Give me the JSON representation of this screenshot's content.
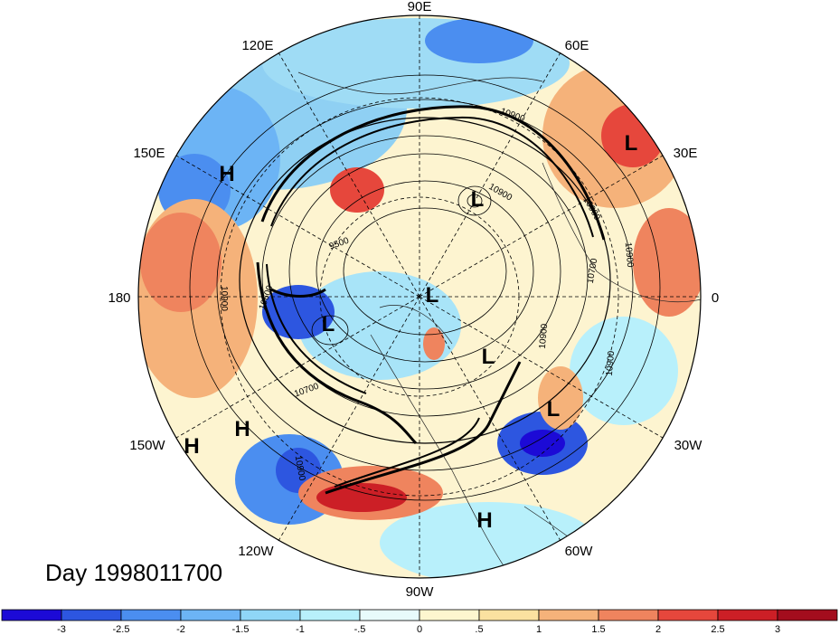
{
  "map": {
    "projection": "north-polar-stereographic",
    "longitude_labels": [
      "90E",
      "60E",
      "30E",
      "0",
      "30W",
      "60W",
      "90W",
      "120W",
      "150W",
      "180",
      "150E",
      "120E"
    ],
    "contour_labels": [
      "10900",
      "10900",
      "9500",
      "10600",
      "10900",
      "10700",
      "10900",
      "10900",
      "10700",
      "10900",
      "10900",
      "10900"
    ],
    "pressure_centers": [
      {
        "label": "H"
      },
      {
        "label": "L"
      },
      {
        "label": "L"
      },
      {
        "label": "L"
      },
      {
        "label": "L"
      },
      {
        "label": "L"
      },
      {
        "label": "L"
      },
      {
        "label": "H"
      },
      {
        "label": "H"
      },
      {
        "label": "H"
      }
    ]
  },
  "date_label": "Day 1998011700",
  "colorbar": {
    "ticks": [
      "-3",
      "-2.5",
      "-2",
      "-1.5",
      "-1",
      "-.5",
      "0",
      ".5",
      "1",
      "1.5",
      "2",
      "2.5",
      "3"
    ],
    "colors": [
      "#1c0ad6",
      "#2d56e0",
      "#4b8ef0",
      "#6cb4f5",
      "#8fd6f7",
      "#b8f0fb",
      "#e8fbfb",
      "#fdf6cf",
      "#fbe1a0",
      "#f5b27a",
      "#ef845e",
      "#e6473c",
      "#cc1f26",
      "#a30d1d"
    ]
  }
}
